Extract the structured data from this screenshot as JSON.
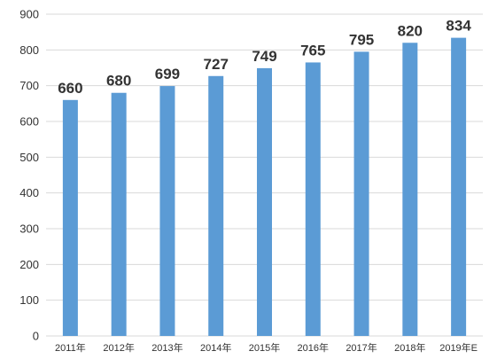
{
  "chart_data": {
    "type": "bar",
    "categories": [
      "2011年",
      "2012年",
      "2013年",
      "2014年",
      "2015年",
      "2016年",
      "2017年",
      "2018年",
      "2019年E"
    ],
    "values": [
      660,
      680,
      699,
      727,
      749,
      765,
      795,
      820,
      834
    ],
    "y_ticks": [
      0,
      100,
      200,
      300,
      400,
      500,
      600,
      700,
      800,
      900
    ],
    "ylim": [
      0,
      900
    ],
    "grid": true,
    "legend": "none",
    "title": "",
    "xlabel": "",
    "ylabel": "",
    "bar_color": "#5b9bd5",
    "grid_color": "#d9d9d9",
    "text_color": "#333333"
  }
}
